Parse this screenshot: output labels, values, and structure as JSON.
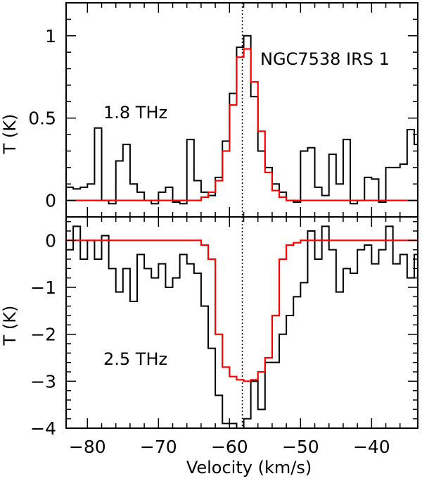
{
  "chart_data": [
    {
      "type": "line",
      "panel": "top",
      "annotation": "1.8 THz",
      "source_label": "NGC7538 IRS 1",
      "ylabel": "T (K)",
      "xlim": [
        -83,
        -33.5
      ],
      "ylim": [
        -0.1,
        1.2
      ],
      "yticks": [
        0,
        0.5,
        1
      ],
      "ytick_labels": [
        "0",
        "0.5",
        "1"
      ],
      "reference_velocity": -58.2,
      "series": [
        {
          "color": "#000000",
          "style": "histogram",
          "x": [
            -83.0,
            -82.0,
            -81.0,
            -80.0,
            -79.0,
            -78.0,
            -77.0,
            -76.0,
            -75.0,
            -74.0,
            -73.0,
            -72.0,
            -71.0,
            -70.0,
            -69.0,
            -68.0,
            -67.0,
            -66.0,
            -65.0,
            -64.0,
            -63.0,
            -62.0,
            -61.0,
            -60.0,
            -59.0,
            -58.0,
            -57.0,
            -56.0,
            -55.0,
            -54.0,
            -53.0,
            -52.0,
            -51.0,
            -50.0,
            -49.0,
            -48.0,
            -47.0,
            -46.0,
            -45.0,
            -44.0,
            -43.0,
            -42.0,
            -41.0,
            -40.0,
            -39.0,
            -38.0,
            -37.0,
            -36.0,
            -35.0,
            -34.0
          ],
          "y": [
            0.08,
            0.07,
            0.08,
            0.1,
            0.44,
            0.0,
            -0.02,
            0.24,
            0.34,
            0.1,
            0.05,
            0.0,
            -0.02,
            0.05,
            0.08,
            -0.01,
            -0.02,
            0.37,
            0.12,
            0.05,
            0.03,
            0.14,
            0.36,
            0.65,
            0.93,
            1.0,
            0.63,
            0.3,
            0.2,
            0.1,
            0.05,
            0.0,
            -0.01,
            0.3,
            0.32,
            0.08,
            0.03,
            0.28,
            0.1,
            0.37,
            -0.02,
            0.0,
            0.14,
            0.13,
            -0.01,
            0.2,
            0.2,
            0.22,
            0.43,
            0.34
          ]
        },
        {
          "color": "#ff0000",
          "style": "histogram",
          "x": [
            -83.0,
            -82.0,
            -81.0,
            -80.0,
            -79.0,
            -78.0,
            -77.0,
            -76.0,
            -75.0,
            -74.0,
            -73.0,
            -72.0,
            -71.0,
            -70.0,
            -69.0,
            -68.0,
            -67.0,
            -66.0,
            -65.0,
            -64.0,
            -63.0,
            -62.0,
            -61.0,
            -60.0,
            -59.0,
            -58.0,
            -57.0,
            -56.0,
            -55.0,
            -54.0,
            -53.0,
            -52.0,
            -51.0,
            -50.0,
            -49.0,
            -48.0,
            -47.0,
            -46.0,
            -45.0,
            -44.0,
            -43.0,
            -42.0,
            -41.0,
            -40.0,
            -39.0,
            -38.0,
            -37.0,
            -36.0,
            -35.0,
            -34.0
          ],
          "y": [
            0,
            0,
            0,
            0,
            0,
            0,
            0,
            0,
            0,
            0,
            0,
            0,
            0,
            0,
            0,
            0,
            0,
            0,
            0.0,
            0.02,
            0.05,
            0.12,
            0.3,
            0.58,
            0.87,
            0.92,
            0.72,
            0.42,
            0.17,
            0.06,
            0.02,
            0.0,
            0,
            0,
            0,
            0,
            0,
            0,
            0,
            0,
            0,
            0,
            0,
            0,
            0,
            0,
            0,
            0,
            0,
            0
          ]
        }
      ]
    },
    {
      "type": "line",
      "panel": "bottom",
      "annotation": "2.5 THz",
      "xlabel": "Velocity (km/s)",
      "ylabel": "T (K)",
      "xlim": [
        -83,
        -33.5
      ],
      "ylim": [
        -4,
        0.5
      ],
      "yticks": [
        0,
        -1,
        -2,
        -3,
        -4
      ],
      "ytick_labels": [
        "0",
        "−1",
        "−2",
        "−3",
        "−4"
      ],
      "xticks": [
        -80,
        -70,
        -60,
        -50,
        -40
      ],
      "xtick_labels": [
        "−80",
        "−70",
        "−60",
        "−50",
        "−40"
      ],
      "reference_velocity": -58.2,
      "series": [
        {
          "color": "#000000",
          "style": "histogram",
          "x": [
            -83.0,
            -82.0,
            -81.0,
            -80.0,
            -79.0,
            -78.0,
            -77.0,
            -76.0,
            -75.0,
            -74.0,
            -73.0,
            -72.0,
            -71.0,
            -70.0,
            -69.0,
            -68.0,
            -67.0,
            -66.0,
            -65.0,
            -64.0,
            -63.0,
            -62.0,
            -61.0,
            -60.0,
            -59.0,
            -58.0,
            -57.0,
            -56.0,
            -55.0,
            -54.0,
            -53.0,
            -52.0,
            -51.0,
            -50.0,
            -49.0,
            -48.0,
            -47.0,
            -46.0,
            -45.0,
            -44.0,
            -43.0,
            -42.0,
            -41.0,
            -40.0,
            -39.0,
            -38.0,
            -37.0,
            -36.0,
            -35.0,
            -34.0
          ],
          "y": [
            -0.2,
            0.3,
            -0.4,
            0.0,
            -0.4,
            0.1,
            -0.6,
            -1.1,
            -0.6,
            -1.3,
            -0.3,
            -0.6,
            -0.8,
            -0.5,
            -1.0,
            -0.8,
            -0.3,
            -0.5,
            -0.7,
            -1.4,
            -2.3,
            -3.3,
            -3.9,
            -3.9,
            -4.1,
            -3.8,
            -3.0,
            -3.6,
            -2.6,
            -2.6,
            -2.0,
            -1.6,
            -1.2,
            -0.9,
            0.2,
            -0.4,
            0.3,
            -0.2,
            -1.1,
            -0.6,
            -0.7,
            -0.2,
            -0.1,
            -0.5,
            -0.2,
            0.3,
            -0.5,
            -0.3,
            -0.8,
            -0.3
          ]
        },
        {
          "color": "#ff0000",
          "style": "histogram",
          "x": [
            -83.0,
            -82.0,
            -81.0,
            -80.0,
            -79.0,
            -78.0,
            -77.0,
            -76.0,
            -75.0,
            -74.0,
            -73.0,
            -72.0,
            -71.0,
            -70.0,
            -69.0,
            -68.0,
            -67.0,
            -66.0,
            -65.0,
            -64.0,
            -63.0,
            -62.0,
            -61.0,
            -60.0,
            -59.0,
            -58.0,
            -57.0,
            -56.0,
            -55.0,
            -54.0,
            -53.0,
            -52.0,
            -51.0,
            -50.0,
            -49.0,
            -48.0,
            -47.0,
            -46.0,
            -45.0,
            -44.0,
            -43.0,
            -42.0,
            -41.0,
            -40.0,
            -39.0,
            -38.0,
            -37.0,
            -36.0,
            -35.0,
            -34.0
          ],
          "y": [
            0,
            0,
            0,
            0,
            0,
            0,
            0,
            0,
            0,
            0,
            0,
            0,
            0,
            0,
            0,
            0,
            0,
            0,
            0,
            -0.1,
            -0.4,
            -2.0,
            -2.7,
            -2.9,
            -2.97,
            -3.0,
            -2.97,
            -2.8,
            -2.5,
            -1.6,
            -0.4,
            -0.1,
            -0.05,
            0,
            0,
            0,
            0,
            0,
            0,
            0,
            0,
            0,
            0,
            0,
            0,
            0,
            0,
            0,
            0,
            0
          ]
        }
      ]
    }
  ]
}
